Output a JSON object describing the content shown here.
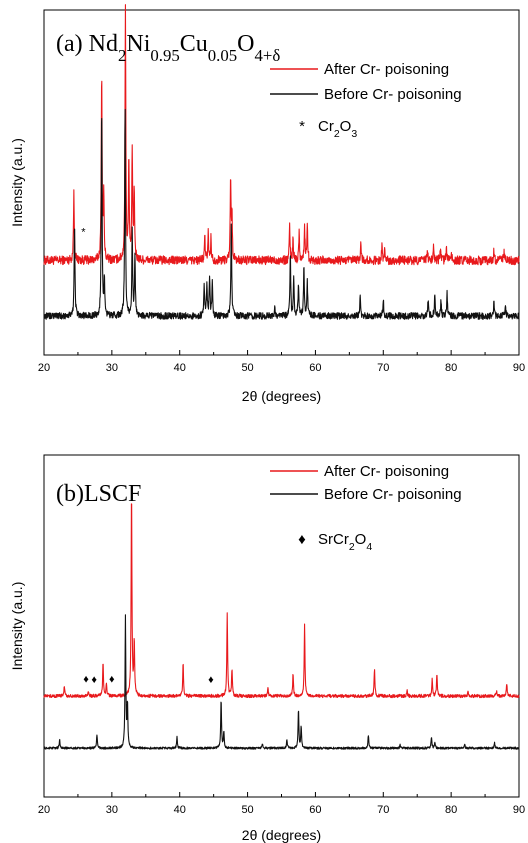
{
  "chart_data": [
    {
      "type": "line",
      "title_base": "(a) Nd",
      "title_parts": [
        {
          "text": "(a) Nd",
          "sub": false
        },
        {
          "text": "2",
          "sub": true
        },
        {
          "text": "Ni",
          "sub": false
        },
        {
          "text": "0.95",
          "sub": true
        },
        {
          "text": "Cu",
          "sub": false
        },
        {
          "text": "0.05",
          "sub": true
        },
        {
          "text": "O",
          "sub": false
        },
        {
          "text": "4+δ",
          "sub": true
        }
      ],
      "xlabel": "2θ (degrees)",
      "ylabel": "Intensity (a.u.)",
      "xlim": [
        20,
        90
      ],
      "xticks": [
        "20",
        "30",
        "40",
        "50",
        "60",
        "70",
        "80",
        "90"
      ],
      "legend": [
        {
          "label": "After Cr- poisoning",
          "color": "#e8191c"
        },
        {
          "label": "Before Cr- poisoning",
          "color": "#111111"
        }
      ],
      "marker_legend": {
        "symbol": "*",
        "label_parts": [
          {
            "text": "Cr",
            "sub": false
          },
          {
            "text": "2",
            "sub": true
          },
          {
            "text": "O",
            "sub": false
          },
          {
            "text": "3",
            "sub": true
          }
        ]
      },
      "marker_positions_2theta": [
        25.8
      ],
      "series": [
        {
          "name": "After Cr- poisoning",
          "color": "#e8191c",
          "baseline": 0.5,
          "noise": 0.04,
          "peaks": [
            [
              24.4,
              0.6
            ],
            [
              28.5,
              1.7
            ],
            [
              28.8,
              0.6
            ],
            [
              32.0,
              2.3
            ],
            [
              32.5,
              0.9
            ],
            [
              33.0,
              1.0
            ],
            [
              33.3,
              0.6
            ],
            [
              43.7,
              0.2
            ],
            [
              44.2,
              0.25
            ],
            [
              44.6,
              0.2
            ],
            [
              47.5,
              0.75
            ],
            [
              47.7,
              0.4
            ],
            [
              56.2,
              0.3
            ],
            [
              56.7,
              0.2
            ],
            [
              57.6,
              0.25
            ],
            [
              58.4,
              0.3
            ],
            [
              58.8,
              0.35
            ],
            [
              66.7,
              0.15
            ],
            [
              69.8,
              0.12
            ],
            [
              70.2,
              0.1
            ],
            [
              76.5,
              0.1
            ],
            [
              77.4,
              0.12
            ],
            [
              78.4,
              0.1
            ],
            [
              79.3,
              0.1
            ],
            [
              80.0,
              0.08
            ],
            [
              86.3,
              0.08
            ],
            [
              87.8,
              0.08
            ]
          ]
        },
        {
          "name": "Before Cr- poisoning",
          "color": "#111111",
          "baseline": 0.0,
          "noise": 0.03,
          "peaks": [
            [
              24.5,
              0.85
            ],
            [
              28.5,
              1.9
            ],
            [
              28.9,
              0.3
            ],
            [
              31.95,
              1.9
            ],
            [
              33.0,
              0.75
            ],
            [
              33.4,
              0.55
            ],
            [
              43.6,
              0.3
            ],
            [
              44.0,
              0.3
            ],
            [
              44.4,
              0.35
            ],
            [
              44.8,
              0.3
            ],
            [
              47.6,
              0.85
            ],
            [
              54.0,
              0.08
            ],
            [
              56.3,
              0.55
            ],
            [
              56.8,
              0.35
            ],
            [
              57.5,
              0.3
            ],
            [
              58.3,
              0.45
            ],
            [
              58.8,
              0.3
            ],
            [
              66.6,
              0.2
            ],
            [
              70.0,
              0.15
            ],
            [
              76.6,
              0.15
            ],
            [
              77.6,
              0.2
            ],
            [
              78.5,
              0.15
            ],
            [
              79.4,
              0.2
            ],
            [
              86.3,
              0.12
            ],
            [
              88.0,
              0.1
            ]
          ]
        }
      ]
    },
    {
      "type": "line",
      "title_parts": [
        {
          "text": "(b)LSCF",
          "sub": false
        }
      ],
      "xlabel": "2θ (degrees)",
      "ylabel": "Intensity (a.u.)",
      "xlim": [
        20,
        90
      ],
      "xticks": [
        "20",
        "30",
        "40",
        "50",
        "60",
        "70",
        "80",
        "90"
      ],
      "legend": [
        {
          "label": "After Cr- poisoning",
          "color": "#e8191c"
        },
        {
          "label": "Before Cr- poisoning",
          "color": "#111111"
        }
      ],
      "marker_legend": {
        "symbol": "♦",
        "label_parts": [
          {
            "text": "SrCr",
            "sub": false
          },
          {
            "text": "2",
            "sub": true
          },
          {
            "text": "O",
            "sub": false
          },
          {
            "text": "4",
            "sub": true
          }
        ]
      },
      "marker_positions_2theta": [
        26.2,
        27.4,
        30.0,
        44.6
      ],
      "series": [
        {
          "name": "After Cr- poisoning",
          "color": "#e8191c",
          "baseline": 0.48,
          "noise": 0.015,
          "peaks": [
            [
              23.0,
              0.1
            ],
            [
              26.5,
              0.05
            ],
            [
              28.7,
              0.3
            ],
            [
              29.2,
              0.12
            ],
            [
              32.9,
              1.9
            ],
            [
              33.3,
              0.5
            ],
            [
              40.5,
              0.3
            ],
            [
              47.0,
              0.75
            ],
            [
              47.7,
              0.25
            ],
            [
              53.0,
              0.08
            ],
            [
              56.7,
              0.2
            ],
            [
              58.4,
              0.65
            ],
            [
              68.7,
              0.25
            ],
            [
              73.5,
              0.05
            ],
            [
              77.2,
              0.15
            ],
            [
              77.9,
              0.2
            ],
            [
              82.5,
              0.05
            ],
            [
              86.7,
              0.05
            ],
            [
              88.2,
              0.12
            ]
          ]
        },
        {
          "name": "Before Cr- poisoning",
          "color": "#111111",
          "baseline": 0.0,
          "noise": 0.01,
          "peaks": [
            [
              22.3,
              0.08
            ],
            [
              27.8,
              0.12
            ],
            [
              32.0,
              1.2
            ],
            [
              32.3,
              0.4
            ],
            [
              39.6,
              0.1
            ],
            [
              46.1,
              0.45
            ],
            [
              46.5,
              0.15
            ],
            [
              52.2,
              0.04
            ],
            [
              55.8,
              0.08
            ],
            [
              57.5,
              0.35
            ],
            [
              57.9,
              0.2
            ],
            [
              67.8,
              0.12
            ],
            [
              72.5,
              0.03
            ],
            [
              77.1,
              0.1
            ],
            [
              77.6,
              0.06
            ],
            [
              82.0,
              0.03
            ],
            [
              86.4,
              0.05
            ]
          ]
        }
      ]
    }
  ]
}
